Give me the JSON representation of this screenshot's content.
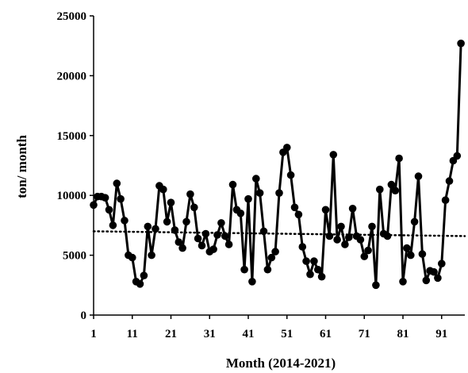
{
  "chart_data": {
    "type": "line",
    "xlabel": "Month (2014-2021)",
    "ylabel": "ton/ month",
    "xlim": [
      1,
      97
    ],
    "ylim": [
      0,
      25000
    ],
    "x_ticks": [
      "1",
      "11",
      "21",
      "31",
      "41",
      "51",
      "61",
      "71",
      "81",
      "91"
    ],
    "y_ticks": [
      "0",
      "5000",
      "10000",
      "15000",
      "20000",
      "25000"
    ],
    "series": [
      {
        "marker": "circle",
        "color": "#000000",
        "values": [
          9200,
          9900,
          9900,
          9800,
          8800,
          7500,
          11000,
          9700,
          7900,
          5000,
          4800,
          2800,
          2600,
          3300,
          7400,
          5000,
          7200,
          10800,
          10500,
          7800,
          9400,
          7100,
          6100,
          5600,
          7800,
          10100,
          9000,
          6400,
          5800,
          6800,
          5300,
          5500,
          6700,
          7700,
          6600,
          5900,
          10900,
          8800,
          8500,
          3800,
          9700,
          2800,
          11400,
          10200,
          7000,
          3800,
          4800,
          5300,
          10200,
          13600,
          14000,
          11700,
          9000,
          8400,
          5700,
          4500,
          3400,
          4500,
          3800,
          3200,
          8800,
          6600,
          13400,
          6300,
          7400,
          5900,
          6500,
          8900,
          6600,
          6300,
          4900,
          5400,
          7400,
          2500,
          10500,
          6800,
          6600,
          10900,
          10400,
          13100,
          2800,
          5600,
          5000,
          7800,
          11600,
          5100,
          2900,
          3700,
          3600,
          3100,
          4300,
          9600,
          11200,
          12900,
          13300,
          22700
        ]
      }
    ],
    "trendline": {
      "style": "dotted",
      "start": 7000,
      "end": 6600
    }
  }
}
